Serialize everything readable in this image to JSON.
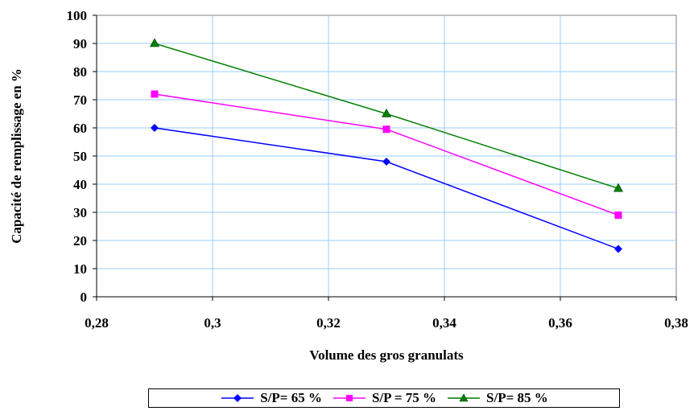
{
  "chart_data": {
    "type": "line",
    "title": "",
    "xlabel": "Volume des gros granulats",
    "ylabel": "Capacité de remplissage en %",
    "xlim": [
      0.28,
      0.38
    ],
    "ylim": [
      0,
      100
    ],
    "x_ticks": [
      0.28,
      0.3,
      0.32,
      0.34,
      0.36,
      0.38
    ],
    "x_tick_labels": [
      "0,28",
      "0,3",
      "0,32",
      "0,34",
      "0,36",
      "0,38"
    ],
    "y_ticks": [
      0,
      10,
      20,
      30,
      40,
      50,
      60,
      70,
      80,
      90,
      100
    ],
    "y_tick_labels": [
      "0",
      "10",
      "20",
      "30",
      "40",
      "50",
      "60",
      "70",
      "80",
      "90",
      "100"
    ],
    "grid": true,
    "legend_position": "bottom",
    "series": [
      {
        "name": "S/P= 65 %",
        "color": "#0000ff",
        "marker": "diamond",
        "x": [
          0.29,
          0.33,
          0.37
        ],
        "y": [
          60,
          48,
          17
        ]
      },
      {
        "name": "S/P = 75 %",
        "color": "#ff00ff",
        "marker": "square",
        "x": [
          0.29,
          0.33,
          0.37
        ],
        "y": [
          72,
          59.5,
          29
        ]
      },
      {
        "name": "S/P= 85 %",
        "color": "#007f00",
        "marker": "triangle",
        "x": [
          0.29,
          0.33,
          0.37
        ],
        "y": [
          90,
          65,
          38.5
        ]
      }
    ]
  }
}
